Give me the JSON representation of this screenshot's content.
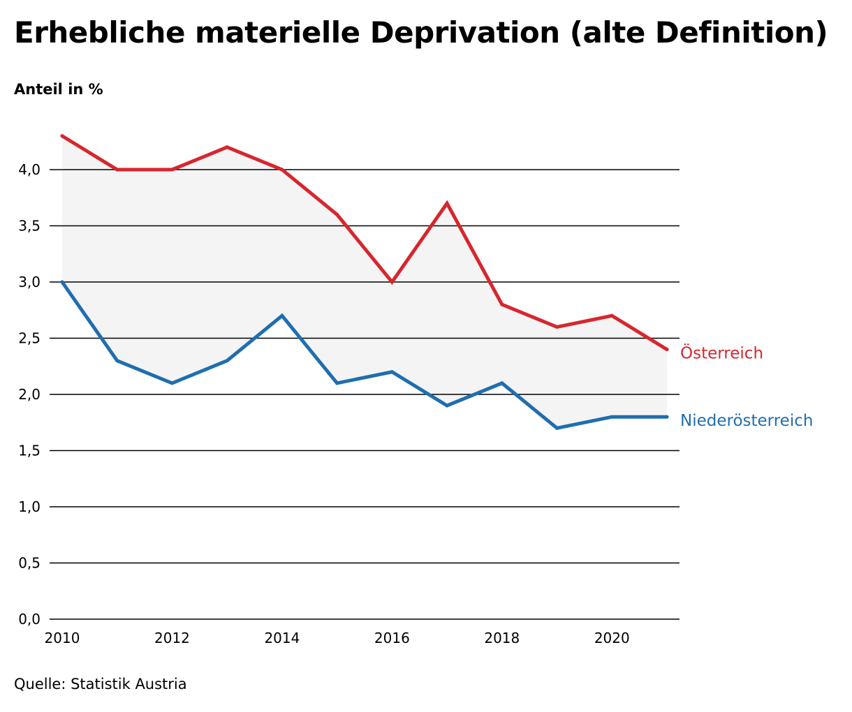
{
  "chart_data": {
    "type": "line",
    "title": "Erhebliche materielle Deprivation (alte Definition)",
    "ylabel": "Anteil in %",
    "xlabel": "",
    "source": "Quelle: Statistik Austria",
    "x": [
      2010,
      2011,
      2012,
      2013,
      2014,
      2015,
      2016,
      2017,
      2018,
      2019,
      2020,
      2021
    ],
    "xticks": [
      2010,
      2012,
      2014,
      2016,
      2018,
      2020
    ],
    "yticks": [
      0,
      0.5,
      1,
      1.5,
      2,
      2.5,
      3,
      3.5,
      4
    ],
    "ytick_labels": [
      "0,0",
      "0,5",
      "1,0",
      "1,5",
      "2,0",
      "2,5",
      "3,0",
      "3,5",
      "4,0"
    ],
    "ylim": [
      0,
      4.3
    ],
    "xlim": [
      2010,
      2021
    ],
    "grid": true,
    "legend": "line-end labels",
    "fill_between": true,
    "fill_color": "#f4f4f4",
    "series": [
      {
        "name": "Österreich",
        "color": "#d7262e",
        "values": [
          4.3,
          4.0,
          4.0,
          4.2,
          4.0,
          3.6,
          3.0,
          3.7,
          2.8,
          2.6,
          2.7,
          2.4
        ]
      },
      {
        "name": "Niederösterreich",
        "color": "#1f6eaf",
        "values": [
          3.0,
          2.3,
          2.1,
          2.3,
          2.7,
          2.1,
          2.2,
          1.9,
          2.1,
          1.7,
          1.8,
          1.8
        ]
      }
    ]
  }
}
